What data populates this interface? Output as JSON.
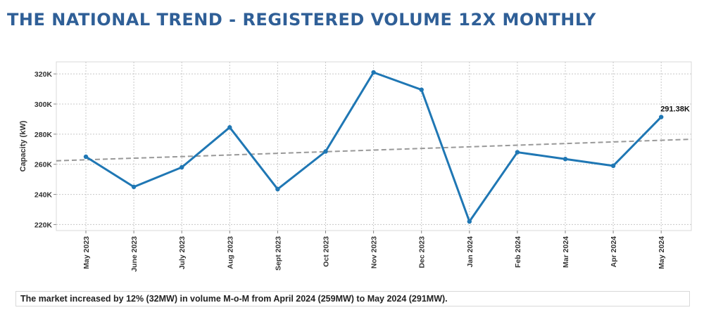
{
  "page": {
    "title": "THE NATIONAL TREND - REGISTERED VOLUME 12X MONTHLY",
    "summary": "The market increased by 12% (32MW) in volume M-o-M from April 2024 (259MW) to May 2024 (291MW)."
  },
  "colors": {
    "title": "#2f5f97",
    "line": "#1f77b4",
    "trend": "#999999",
    "grid": "#c8c8c8"
  },
  "chart_data": {
    "type": "line",
    "title": "",
    "xlabel": "",
    "ylabel": "Capacity (kW)",
    "categories": [
      "May 2023",
      "June 2023",
      "July 2023",
      "Aug 2023",
      "Sept 2023",
      "Oct 2023",
      "Nov 2023",
      "Dec 2023",
      "Jan 2024",
      "Feb 2024",
      "Mar 2024",
      "Apr 2024",
      "May 2024"
    ],
    "values": [
      265,
      245,
      258,
      284.5,
      243.5,
      268.5,
      321,
      309.5,
      222,
      268,
      263.5,
      259,
      291.38
    ],
    "value_unit": "K",
    "ylim": [
      216,
      328
    ],
    "yticks": [
      220,
      240,
      260,
      280,
      300,
      320
    ],
    "ytick_labels": [
      "220K",
      "240K",
      "260K",
      "280K",
      "300K",
      "320K"
    ],
    "trendline": {
      "style": "dashed",
      "start_value": 262.3,
      "end_value": 276.6
    },
    "data_labels": [
      {
        "index": 12,
        "text": "291.38K"
      }
    ],
    "grid": true,
    "legend": "none"
  }
}
